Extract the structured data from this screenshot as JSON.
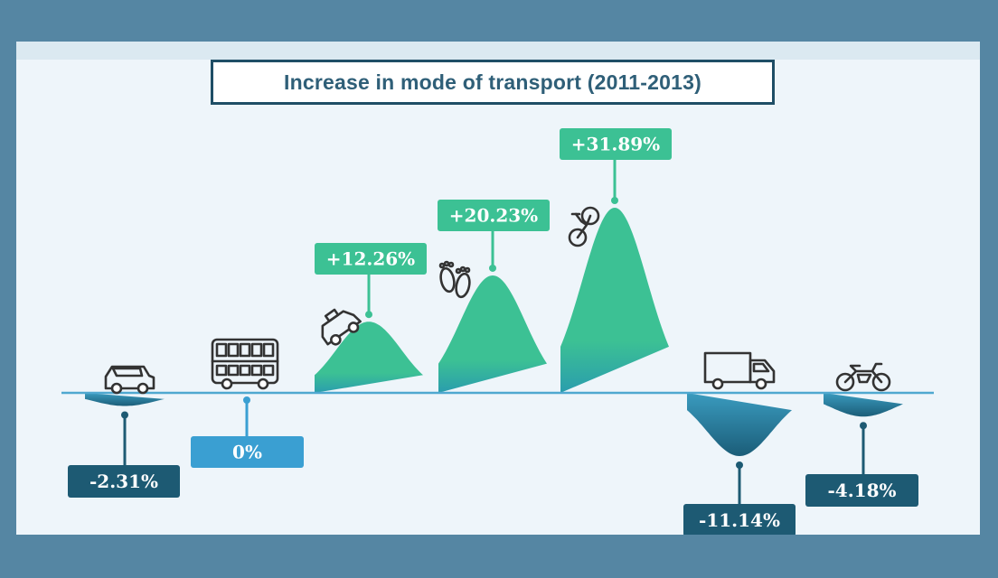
{
  "chart_data": {
    "type": "area",
    "title": "Increase in mode of transport (2011-2013)",
    "categories": [
      "car",
      "bus",
      "taxi",
      "walking",
      "bicycle",
      "truck",
      "motorcycle"
    ],
    "values": [
      -2.31,
      0,
      12.26,
      20.23,
      31.89,
      -11.14,
      -4.18
    ],
    "labels": [
      "-2.31%",
      "0%",
      "+12.26%",
      "+20.23%",
      "+31.89%",
      "-11.14%",
      "-4.18%"
    ],
    "icons": [
      "car-icon",
      "bus-icon",
      "taxi-icon",
      "footprints-icon",
      "bicycle-icon",
      "truck-icon",
      "motorcycle-icon"
    ],
    "colors": {
      "positive": "#3cc194",
      "positive_base": "#2a9dad",
      "negative_top": "#3a9bbf",
      "negative": "#1b5d78",
      "zero_label": "#3a9fd2",
      "negative_label": "#1d5a73",
      "positive_label": "#3cc194",
      "baseline": "#4fa8d0",
      "icon_stroke": "#333333"
    },
    "legend": "none",
    "grid": false
  }
}
